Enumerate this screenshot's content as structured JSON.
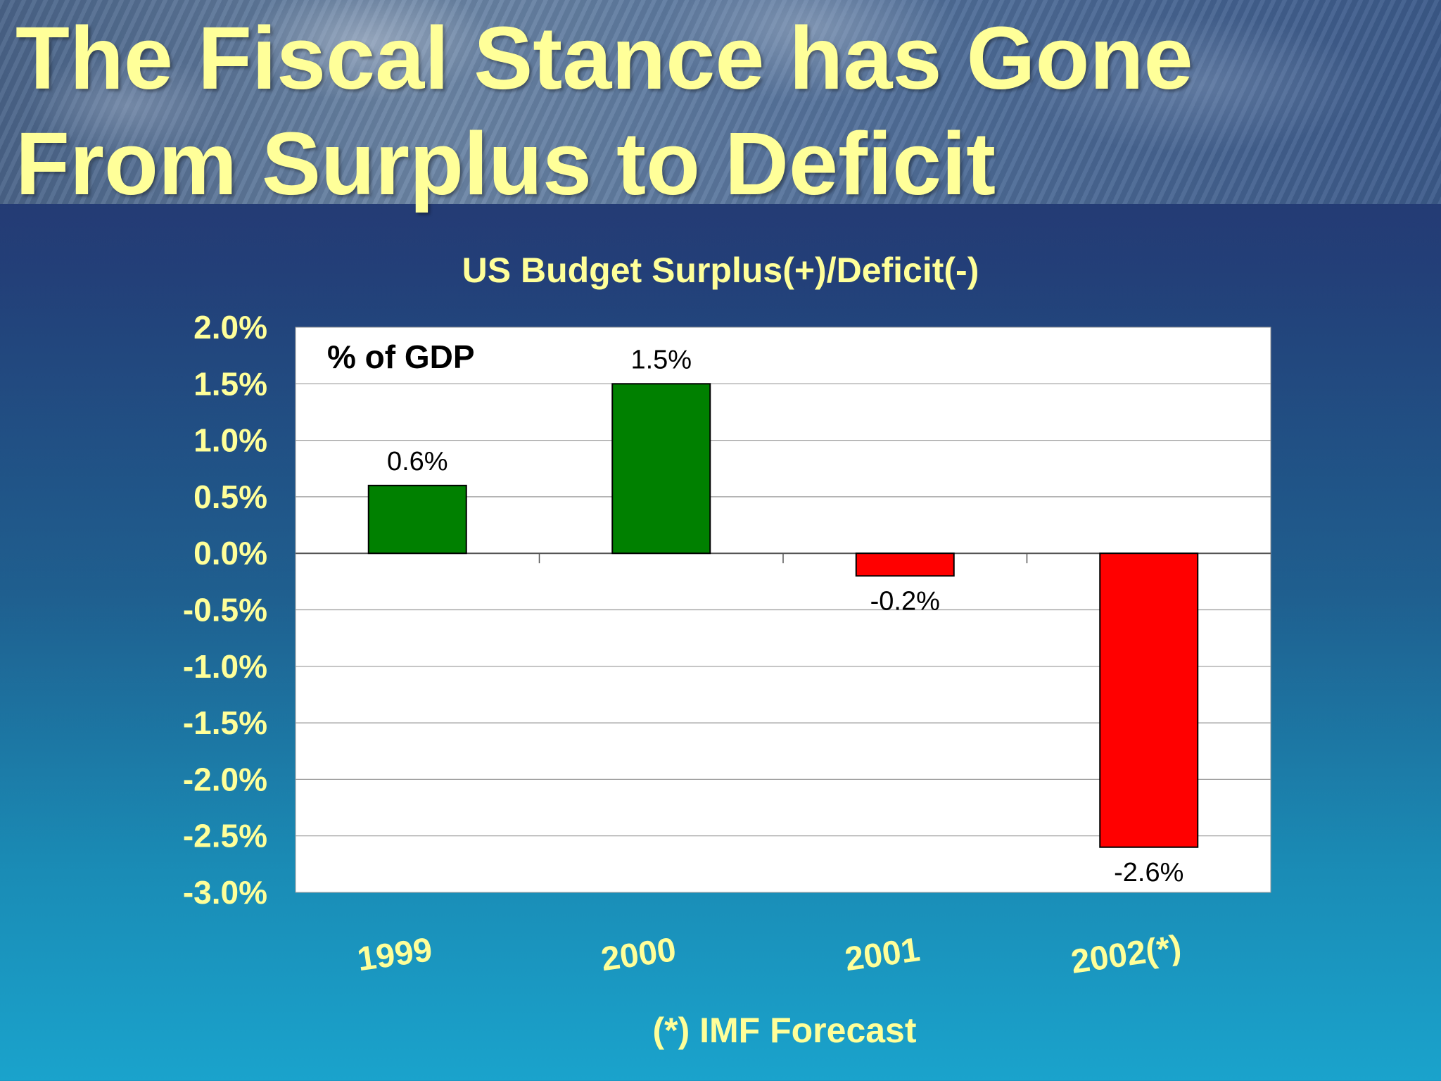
{
  "slide": {
    "title": "The Fiscal Stance has Gone\nFrom Surplus to Deficit",
    "footnote": "(*) IMF Forecast"
  },
  "chart_data": {
    "type": "bar",
    "title": "US Budget Surplus(+)/Deficit(-)",
    "unit_label": "% of GDP",
    "categories": [
      "1999",
      "2000",
      "2001",
      "2002(*)"
    ],
    "values": [
      0.6,
      1.5,
      -0.2,
      -2.6
    ],
    "data_labels": [
      "0.6%",
      "1.5%",
      "-0.2%",
      "-2.6%"
    ],
    "ylim": [
      -3.0,
      2.0
    ],
    "yticks": [
      2.0,
      1.5,
      1.0,
      0.5,
      0.0,
      -0.5,
      -1.0,
      -1.5,
      -2.0,
      -2.5,
      -3.0
    ],
    "ytick_labels": [
      "2.0%",
      "1.5%",
      "1.0%",
      "0.5%",
      "0.0%",
      "-0.5%",
      "-1.0%",
      "-1.5%",
      "-2.0%",
      "-2.5%",
      "-3.0%"
    ],
    "grid": true,
    "colors": {
      "positive": "#008000",
      "negative": "#ff0000",
      "plot_bg": "#ffffff",
      "text": "#ffff99"
    }
  }
}
